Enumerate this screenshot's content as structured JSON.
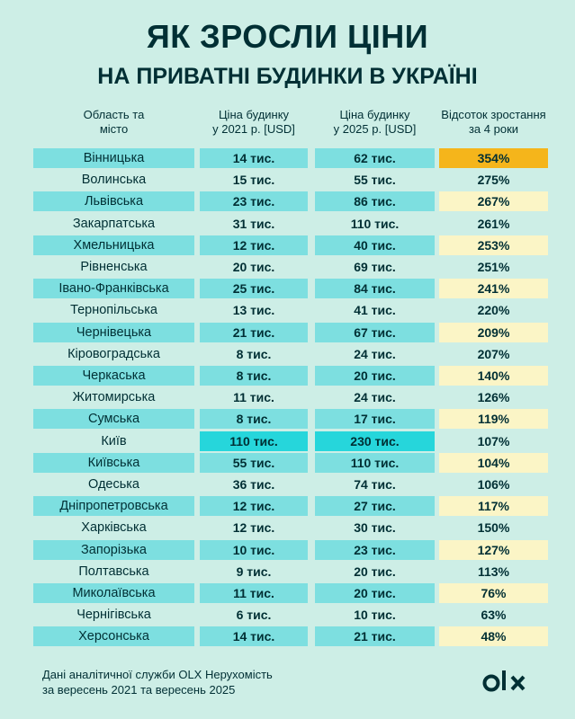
{
  "title_line1": "ЯК ЗРОСЛИ ЦІНИ",
  "title_line2": "НА ПРИВАТНІ БУДИНКИ В УКРАЇНІ",
  "headers": [
    "Область та\nмісто",
    "Ціна будинку\nу 2021 р. [USD]",
    "Ціна будинку\nу 2025 р. [USD]",
    "Відсоток зростання\nза 4 роки"
  ],
  "rows": [
    {
      "region": "Вінницька",
      "price_2021": "14 тис.",
      "price_2025": "62 тис.",
      "growth": "354%"
    },
    {
      "region": "Волинська",
      "price_2021": "15 тис.",
      "price_2025": "55 тис.",
      "growth": "275%"
    },
    {
      "region": "Львівська",
      "price_2021": "23 тис.",
      "price_2025": "86 тис.",
      "growth": "267%"
    },
    {
      "region": "Закарпатська",
      "price_2021": "31 тис.",
      "price_2025": "110 тис.",
      "growth": "261%"
    },
    {
      "region": "Хмельницька",
      "price_2021": "12 тис.",
      "price_2025": "40 тис.",
      "growth": "253%"
    },
    {
      "region": "Рівненська",
      "price_2021": "20 тис.",
      "price_2025": "69 тис.",
      "growth": "251%"
    },
    {
      "region": "Івано-Франківська",
      "price_2021": "25 тис.",
      "price_2025": "84 тис.",
      "growth": "241%"
    },
    {
      "region": "Тернопільська",
      "price_2021": "13 тис.",
      "price_2025": "41 тис.",
      "growth": "220%"
    },
    {
      "region": "Чернівецька",
      "price_2021": "21 тис.",
      "price_2025": "67 тис.",
      "growth": "209%"
    },
    {
      "region": "Кіровоградська",
      "price_2021": "8 тис.",
      "price_2025": "24 тис.",
      "growth": "207%"
    },
    {
      "region": "Черкаська",
      "price_2021": "8 тис.",
      "price_2025": "20 тис.",
      "growth": "140%"
    },
    {
      "region": "Житомирська",
      "price_2021": "11 тис.",
      "price_2025": "24 тис.",
      "growth": "126%"
    },
    {
      "region": "Сумська",
      "price_2021": "8 тис.",
      "price_2025": "17 тис.",
      "growth": "119%"
    },
    {
      "region": "Київ",
      "price_2021": "110 тис.",
      "price_2025": "230 тис.",
      "growth": "107%"
    },
    {
      "region": "Київська",
      "price_2021": "55 тис.",
      "price_2025": "110 тис.",
      "growth": "104%"
    },
    {
      "region": "Одеська",
      "price_2021": "36 тис.",
      "price_2025": "74 тис.",
      "growth": "106%"
    },
    {
      "region": "Дніпропетровська",
      "price_2021": "12 тис.",
      "price_2025": "27 тис.",
      "growth": "117%"
    },
    {
      "region": "Харківська",
      "price_2021": "12 тис.",
      "price_2025": "30 тис.",
      "growth": "150%"
    },
    {
      "region": "Запорізька",
      "price_2021": "10 тис.",
      "price_2025": "23 тис.",
      "growth": "127%"
    },
    {
      "region": "Полтавська",
      "price_2021": "9 тис.",
      "price_2025": "20 тис.",
      "growth": "113%"
    },
    {
      "region": "Миколаївська",
      "price_2021": "11 тис.",
      "price_2025": "20 тис.",
      "growth": "76%"
    },
    {
      "region": "Чернігівська",
      "price_2021": "6 тис.",
      "price_2025": "10 тис.",
      "growth": "63%"
    },
    {
      "region": "Херсонська",
      "price_2021": "14 тис.",
      "price_2025": "21 тис.",
      "growth": "48%"
    }
  ],
  "footer_line1": "Дані аналітичної служби OLX Нерухомість",
  "footer_line2": "за вересень 2021 та вересень 2025",
  "logo_text": "olx",
  "colors": {
    "background": "#cdeee6",
    "text": "#002f34",
    "teal_band": "#7ddfe0",
    "teal_highlight": "#26d6db",
    "cream_band": "#fbf5c6",
    "gold_highlight": "#f5b51b"
  }
}
